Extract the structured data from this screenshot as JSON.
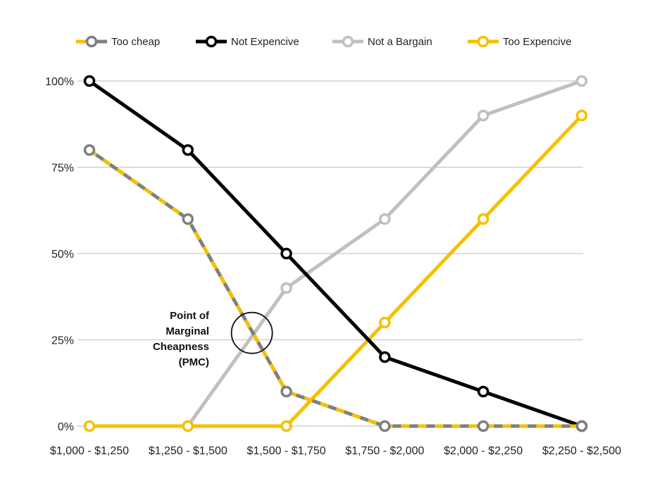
{
  "chart_data": {
    "type": "line",
    "categories": [
      "$1,000 - $1,250",
      "$1,250 - $1,500",
      "$1,500 - $1,750",
      "$1,750 - $2,000",
      "$2,000 - $2,250",
      "$2,250 - $2,500"
    ],
    "ylim": [
      0,
      100
    ],
    "yticks": [
      0,
      25,
      50,
      75,
      100
    ],
    "ytick_labels": [
      "0%",
      "25%",
      "50%",
      "75%",
      "100%"
    ],
    "grid": true,
    "legend_position": "top",
    "series": [
      {
        "name": "Too cheap",
        "values": [
          80,
          60,
          10,
          0,
          0,
          0
        ],
        "color": "#7f7f7f",
        "dash_color": "#f5c000",
        "dashed": true
      },
      {
        "name": "Not Expencive",
        "values": [
          100,
          80,
          50,
          20,
          10,
          0
        ],
        "color": "#000000",
        "dashed": false
      },
      {
        "name": "Not a Bargain",
        "values": [
          null,
          0,
          40,
          60,
          90,
          100
        ],
        "color": "#c0c0c0",
        "dashed": false
      },
      {
        "name": "Too Expencive",
        "values": [
          0,
          0,
          0,
          30,
          60,
          90
        ],
        "color": "#f5c000",
        "dashed": false
      }
    ],
    "annotation": {
      "lines": [
        "Point of",
        "Marginal",
        "Cheapness",
        "(PMC)"
      ],
      "x_category_position": 1.65,
      "y_value": 27
    }
  }
}
